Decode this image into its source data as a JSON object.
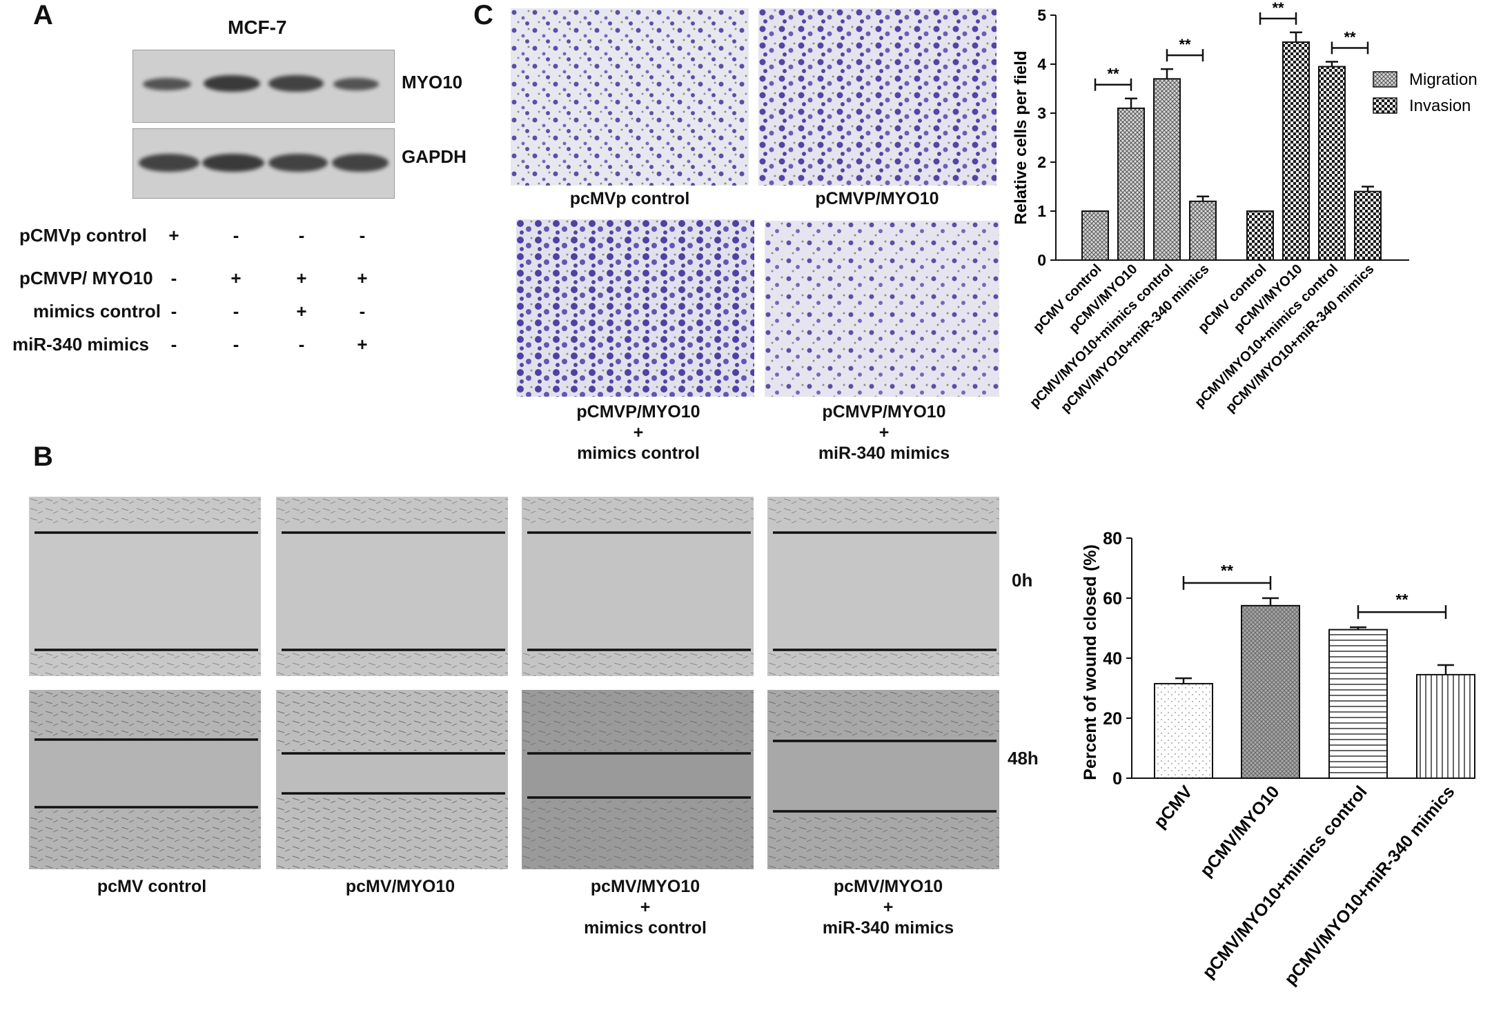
{
  "panels": {
    "a": "A",
    "b": "B",
    "c": "C"
  },
  "western_blot": {
    "cell_line": "MCF-7",
    "bands": [
      "MYO10",
      "GAPDH"
    ],
    "conditions": [
      {
        "label": "pCMVp control",
        "signs": [
          "+",
          "-",
          "-",
          "-"
        ]
      },
      {
        "label": "pCMVP/ MYO10",
        "signs": [
          "-",
          "+",
          "+",
          "+"
        ]
      },
      {
        "label": "mimics control",
        "signs": [
          "-",
          "-",
          "+",
          "-"
        ]
      },
      {
        "label": "miR-340 mimics",
        "signs": [
          "-",
          "-",
          "-",
          "+"
        ]
      }
    ]
  },
  "transwell_images": {
    "captions": [
      "pcMVp control",
      "pCMVP/MYO10",
      "pCMVP/MYO10\n+\nmimics control",
      "pCMVP/MYO10\n+\nmiR-340 mimics"
    ]
  },
  "wound_images": {
    "time_labels": [
      "0h",
      "48h"
    ],
    "captions": [
      "pcMV control",
      "pcMV/MYO10",
      "pcMV/MYO10\n+\nmimics control",
      "pcMV/MYO10\n+\nmiR-340 mimics"
    ]
  },
  "chart_data": [
    {
      "type": "bar",
      "panel": "C",
      "ylabel": "Relative cells per field",
      "ylim": [
        0,
        5
      ],
      "yticks": [
        0,
        1,
        2,
        3,
        4,
        5
      ],
      "legend_position": "top-right",
      "categories": [
        "pCMV control",
        "pCMV/MYO10",
        "pCMV/MYO10+mimics control",
        "pCMV/MYO10+miR-340 mimics"
      ],
      "series": [
        {
          "name": "Migration",
          "values": [
            1.0,
            3.1,
            3.7,
            1.2
          ],
          "errors": [
            0,
            0.2,
            0.2,
            0.1
          ]
        },
        {
          "name": "Invasion",
          "values": [
            1.0,
            4.45,
            3.95,
            1.4
          ],
          "errors": [
            0,
            0.2,
            0.1,
            0.1
          ]
        }
      ],
      "significance": [
        {
          "series": 0,
          "from": 0,
          "to": 1,
          "label": "**"
        },
        {
          "series": 0,
          "from": 2,
          "to": 3,
          "label": "**"
        },
        {
          "series": 1,
          "from": 0,
          "to": 1,
          "label": "**"
        },
        {
          "series": 1,
          "from": 2,
          "to": 3,
          "label": "**"
        }
      ],
      "colors": {
        "migration": "#9a9a9a",
        "invasion": "#1a1a1a"
      }
    },
    {
      "type": "bar",
      "panel": "B",
      "ylabel": "Percent of wound closed (%)",
      "ylim": [
        0,
        80
      ],
      "yticks": [
        0,
        20,
        40,
        60,
        80
      ],
      "categories": [
        "pCMV",
        "pCMV/MYO10",
        "pCMV/MYO10+mimics control",
        "pCMV/MYO10+miR-340 mimics"
      ],
      "values": [
        31.5,
        57.5,
        49.5,
        34.5
      ],
      "errors": [
        1.8,
        2.5,
        0.8,
        3.2
      ],
      "significance": [
        {
          "from": 0,
          "to": 1,
          "label": "**"
        },
        {
          "from": 2,
          "to": 3,
          "label": "**"
        }
      ]
    }
  ]
}
